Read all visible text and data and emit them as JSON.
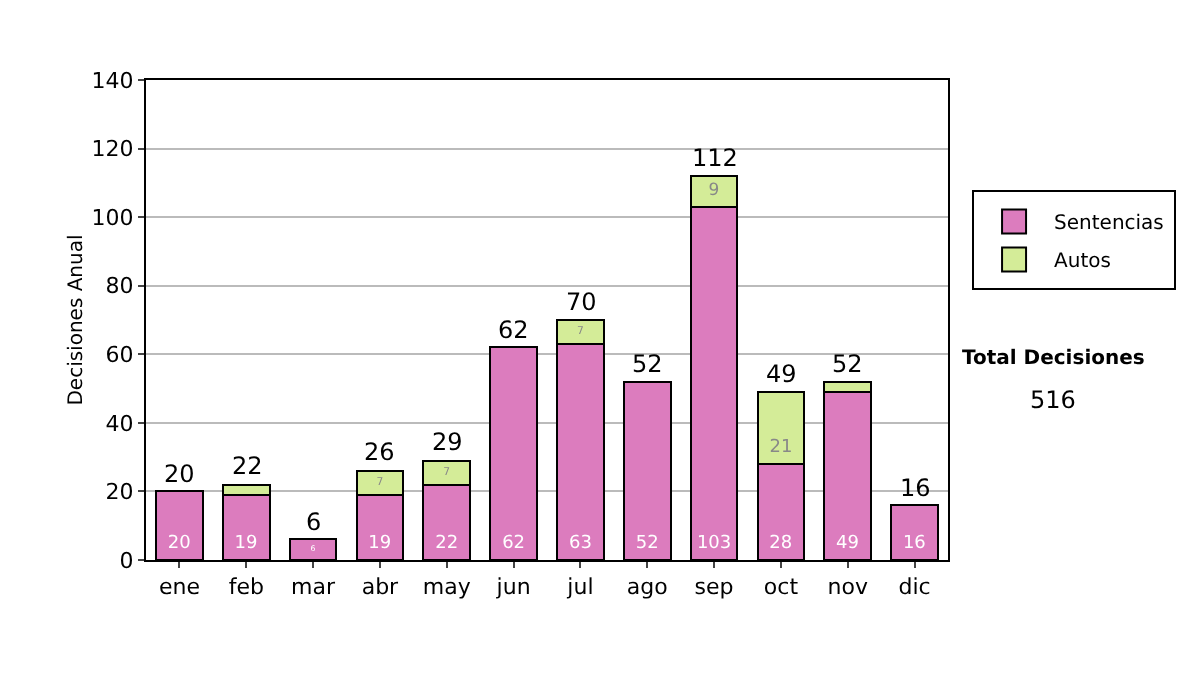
{
  "chart_data": {
    "type": "bar",
    "stacked": true,
    "ylabel": "Decisiones Anual",
    "categories": [
      "ene",
      "feb",
      "mar",
      "abr",
      "may",
      "jun",
      "jul",
      "ago",
      "sep",
      "oct",
      "nov",
      "dic"
    ],
    "series": [
      {
        "name": "Sentencias",
        "color": "#dc7cbe",
        "values": [
          20,
          19,
          6,
          19,
          22,
          62,
          63,
          52,
          103,
          28,
          49,
          16
        ],
        "value_labels": [
          "20",
          "19",
          "6",
          "19",
          "22",
          "62",
          "63",
          "52",
          "103",
          "28",
          "49",
          "16"
        ]
      },
      {
        "name": "Autos",
        "color": "#d4ec98",
        "values": [
          null,
          3,
          null,
          7,
          7,
          null,
          7,
          null,
          9,
          21,
          3,
          null
        ],
        "value_labels": [
          null,
          null,
          null,
          "7",
          "7",
          null,
          "7",
          null,
          "9",
          "21",
          null,
          null
        ]
      }
    ],
    "totals": [
      "20",
      "22",
      "6",
      "26",
      "29",
      "62",
      "70",
      "52",
      "112",
      "49",
      "52",
      "16"
    ],
    "ylim": [
      0,
      140
    ],
    "yticks": [
      0,
      20,
      40,
      60,
      80,
      100,
      120,
      140
    ],
    "grid": "y",
    "legend": "right",
    "annotations": [
      "Total Decisiones",
      "516"
    ]
  }
}
